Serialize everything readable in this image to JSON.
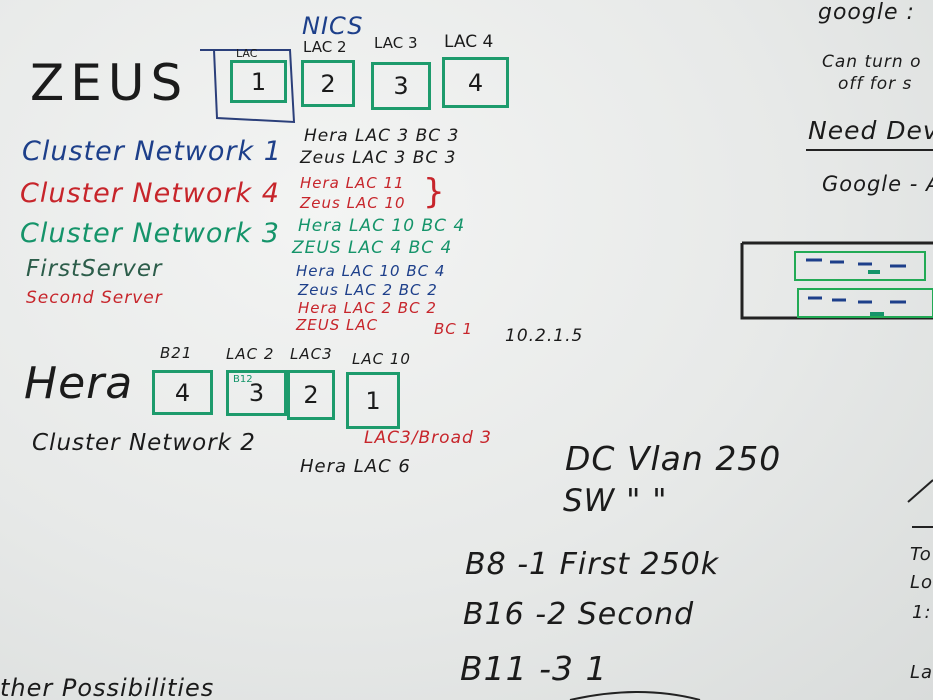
{
  "header": {
    "nics": "NICS"
  },
  "zeus": {
    "name": "ZEUS",
    "ports": [
      {
        "label": "LAC",
        "num": "1"
      },
      {
        "label": "LAC 2",
        "num": "2"
      },
      {
        "label": "LAC 3",
        "num": "3"
      },
      {
        "label": "LAC 4",
        "num": "4"
      }
    ]
  },
  "clusters": [
    {
      "name": "Cluster Network 1",
      "line1": "Hera LAC 3  BC 3",
      "line2": "Zeus LAC 3  BC 3",
      "color": "#1d3f8a"
    },
    {
      "name": "Cluster Network 4",
      "line1": "Hera LAC 11",
      "line2": "Zeus LAC 10",
      "color": "#c7252b"
    },
    {
      "name": "Cluster Network 3",
      "line1": "Hera LAC 10  BC 4",
      "line2": "ZEUS LAC 4  BC 4",
      "color": "#15946a"
    }
  ],
  "servers": {
    "first_label": "FirstServer",
    "second_label": "Second Server",
    "first_line1": "Hera LAC 10  BC 4",
    "first_line2": "Zeus LAC 2  BC 2",
    "second_line1": "Hera LAC 2  BC 2",
    "second_line2": "ZEUS LAC",
    "second_bc": "BC 1",
    "ip": "10.2.1.5"
  },
  "hera": {
    "name": "Hera",
    "ports": [
      {
        "label": "B21",
        "num": "4"
      },
      {
        "label": "LAC 2",
        "num": "3",
        "sub": "B12"
      },
      {
        "label": "LAC3",
        "num": "2"
      },
      {
        "label": "LAC 10",
        "num": "1"
      }
    ],
    "note": "LAC3/Broad 3",
    "cluster2": "Cluster Network 2",
    "cluster2_lac": "Hera LAC 6"
  },
  "vlan": {
    "dc": "DC  Vlan 250",
    "sw": "SW   \" \"",
    "rows": [
      "B8  -1 First  250k",
      "B16  -2 Second",
      "B11  -3 1"
    ]
  },
  "right_notes": {
    "google": "google :",
    "turn": "Can turn o",
    "off": "off for s",
    "need": "Need Deve",
    "google2": "Google - A",
    "to": "To",
    "lo": "Lo",
    "one": "1:",
    "la": "La"
  },
  "bottom": {
    "possibilities": "ther Possibilities"
  },
  "colors": {
    "green": "#15946a",
    "blue": "#1d3f8a",
    "red": "#c7252b",
    "black": "#1b1b1b"
  }
}
